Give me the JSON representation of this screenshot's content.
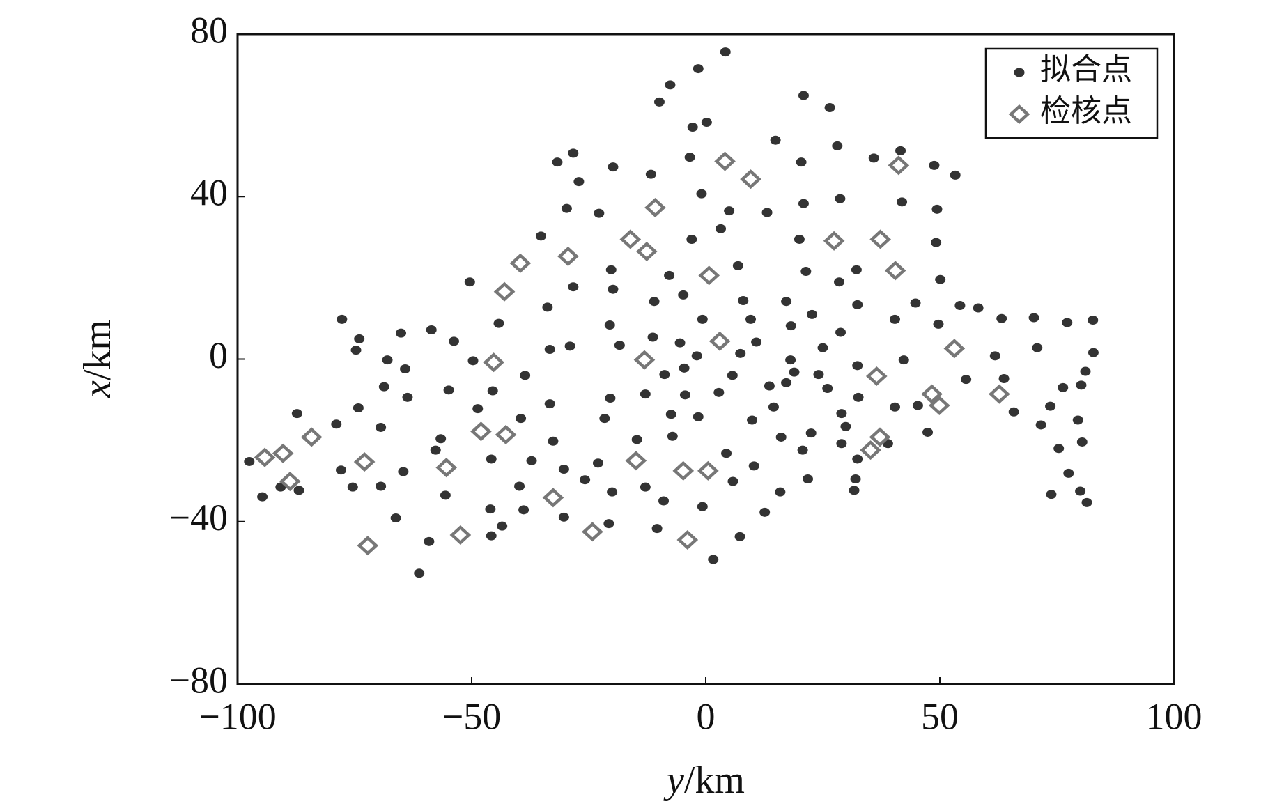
{
  "chart_data": {
    "type": "scatter",
    "x_label": "y/km",
    "y_label": "x/km",
    "xlim": [
      -100,
      100
    ],
    "xticks": [
      {
        "value": -100,
        "label": "−100"
      },
      {
        "value": -50,
        "label": "−50"
      },
      0,
      50,
      100
    ],
    "ylim": [
      -80,
      80
    ],
    "yticks": [
      {
        "value": -80,
        "label": "−80"
      },
      {
        "value": -40,
        "label": "−40"
      },
      0,
      40,
      80
    ],
    "legend": "upper right",
    "series": [
      {
        "name": "拟合点",
        "color": "#333333",
        "marker": "dot",
        "x": [
          4.2,
          -1.6,
          -7.6,
          -9.9,
          20.9,
          26.5,
          0.2,
          -2.8,
          14.9,
          28.1,
          -28.3,
          41.6,
          -3.4,
          -31.7,
          35.9,
          20.4,
          -19.8,
          48.8,
          -11.7,
          53.3,
          -27.1,
          -0.9,
          28.7,
          20.9,
          41.9,
          -29.7,
          49.4,
          -22.8,
          5.0,
          13.1,
          3.2,
          -35.2,
          -3.0,
          20.0,
          49.2,
          -20.2,
          6.9,
          32.2,
          21.4,
          -7.8,
          -50.4,
          28.5,
          50.1,
          -28.3,
          -19.8,
          -4.8,
          17.2,
          44.8,
          -11.0,
          8.0,
          32.4,
          54.3,
          58.2,
          -33.8,
          22.7,
          -77.7,
          40.4,
          63.2,
          70.1,
          77.2,
          82.7,
          -0.7,
          9.6,
          -44.2,
          -20.5,
          18.2,
          49.7,
          -58.6,
          -65.1,
          28.8,
          -11.3,
          -74.0,
          -53.8,
          10.8,
          -5.5,
          -29.0,
          -18.4,
          25.0,
          70.8,
          -74.7,
          -33.3,
          7.4,
          -1.9,
          82.8,
          61.8,
          -49.7,
          -68.0,
          42.3,
          18.1,
          -64.2,
          32.4,
          -4.6,
          18.9,
          81.1,
          -38.6,
          -8.8,
          24.1,
          5.7,
          63.7,
          55.6,
          17.2,
          13.6,
          80.2,
          76.3,
          -68.7,
          26.0,
          -45.5,
          -54.9,
          -12.9,
          2.8,
          -4.4,
          32.6,
          -20.4,
          -63.7,
          -33.3,
          45.3,
          40.4,
          14.5,
          -74.2,
          73.6,
          -48.7,
          29.0,
          -87.3,
          65.8,
          -7.4,
          9.9,
          -39.5,
          -1.6,
          79.5,
          -21.6,
          -78.9,
          71.6,
          29.9,
          -69.4,
          47.4,
          -7.1,
          22.5,
          -56.6,
          16.1,
          -14.7,
          29.0,
          80.4,
          38.9,
          -32.6,
          -57.7,
          75.4,
          20.7,
          4.4,
          32.4,
          -45.8,
          -97.5,
          -23.0,
          -37.2,
          10.3,
          -30.3,
          -77.9,
          -64.6,
          77.5,
          21.8,
          -25.8,
          32.0,
          5.8,
          -90.8,
          -75.4,
          -39.8,
          -69.4,
          -12.9,
          -86.9,
          31.7,
          -20.0,
          15.9,
          80.0,
          -94.7,
          -55.6,
          73.8,
          -9.0,
          81.4,
          -0.7,
          -46.0,
          -38.9,
          12.6,
          -30.3,
          -66.2,
          -20.7,
          -43.5,
          -10.4,
          -45.8,
          7.3,
          -59.1,
          1.6,
          -61.2
        ],
        "values": [
          75.6,
          71.5,
          67.5,
          63.3,
          64.9,
          61.9,
          58.3,
          57.1,
          53.9,
          52.5,
          50.7,
          51.3,
          49.7,
          48.5,
          49.5,
          48.5,
          47.3,
          47.7,
          45.5,
          45.3,
          43.7,
          40.7,
          39.5,
          38.3,
          38.7,
          37.1,
          36.9,
          35.9,
          36.5,
          36.1,
          32.1,
          30.3,
          29.5,
          29.5,
          28.7,
          22.0,
          23.0,
          22.0,
          21.6,
          20.6,
          19.0,
          19.0,
          19.6,
          17.8,
          17.2,
          15.8,
          14.2,
          13.8,
          14.2,
          14.4,
          13.4,
          13.2,
          12.6,
          12.8,
          11.0,
          9.8,
          9.8,
          10.0,
          10.2,
          9.0,
          9.6,
          9.8,
          9.8,
          8.8,
          8.4,
          8.2,
          8.6,
          7.2,
          6.4,
          6.6,
          5.4,
          5.0,
          4.4,
          4.2,
          4.0,
          3.2,
          3.4,
          2.8,
          2.8,
          2.2,
          2.4,
          1.4,
          0.8,
          1.6,
          0.8,
          -0.4,
          -0.2,
          -0.2,
          -0.2,
          -2.4,
          -1.6,
          -2.2,
          -3.2,
          -3.0,
          -4.0,
          -3.8,
          -3.8,
          -4.0,
          -4.8,
          -5.0,
          -5.8,
          -6.6,
          -6.4,
          -7.0,
          -6.8,
          -7.2,
          -7.8,
          -7.6,
          -8.6,
          -8.2,
          -8.8,
          -9.4,
          -9.6,
          -9.4,
          -11.0,
          -11.4,
          -11.8,
          -11.8,
          -12.0,
          -11.6,
          -12.2,
          -13.4,
          -13.4,
          -13.0,
          -13.6,
          -15.0,
          -14.6,
          -14.2,
          -15.0,
          -14.6,
          -16.0,
          -16.2,
          -16.6,
          -16.8,
          -18.0,
          -19.0,
          -18.2,
          -19.6,
          -19.2,
          -19.8,
          -20.8,
          -20.4,
          -20.8,
          -20.2,
          -22.4,
          -22.0,
          -22.4,
          -23.2,
          -24.6,
          -24.6,
          -25.2,
          -25.6,
          -25.0,
          -26.3,
          -27.1,
          -27.3,
          -27.7,
          -28.1,
          -29.5,
          -29.7,
          -29.5,
          -30.1,
          -31.5,
          -31.5,
          -31.3,
          -31.3,
          -31.5,
          -32.3,
          -32.3,
          -32.7,
          -32.7,
          -32.5,
          -33.9,
          -33.5,
          -33.3,
          -34.9,
          -35.3,
          -36.3,
          -36.9,
          -37.1,
          -37.7,
          -38.9,
          -39.1,
          -40.5,
          -41.1,
          -41.7,
          -43.5,
          -43.7,
          -44.9,
          -49.3,
          -52.7
        ]
      },
      {
        "name": "检核点",
        "color": "#777777",
        "marker": "diamond",
        "x": [
          4.1,
          9.6,
          41.2,
          -10.8,
          27.4,
          37.3,
          -16.1,
          -12.6,
          -29.4,
          -39.6,
          0.7,
          40.5,
          -43.0,
          3.0,
          53.1,
          -45.3,
          -13.1,
          36.5,
          48.3,
          62.7,
          49.9,
          -48.0,
          -42.7,
          -84.2,
          37.2,
          35.2,
          -90.3,
          -94.2,
          -72.9,
          -14.9,
          -55.4,
          -4.8,
          0.5,
          -88.8,
          -32.6,
          -24.2,
          -52.4,
          -3.9,
          -72.2
        ],
        "values": [
          48.7,
          44.3,
          47.7,
          37.3,
          29.1,
          29.5,
          29.5,
          26.5,
          25.3,
          23.6,
          20.6,
          21.8,
          16.6,
          4.4,
          2.6,
          -0.8,
          -0.2,
          -4.2,
          -8.6,
          -8.6,
          -11.4,
          -17.8,
          -18.6,
          -19.2,
          -19.2,
          -22.4,
          -23.2,
          -24.2,
          -25.3,
          -25.0,
          -26.7,
          -27.5,
          -27.5,
          -30.1,
          -34.1,
          -42.5,
          -43.3,
          -44.5,
          -45.9
        ]
      }
    ]
  }
}
